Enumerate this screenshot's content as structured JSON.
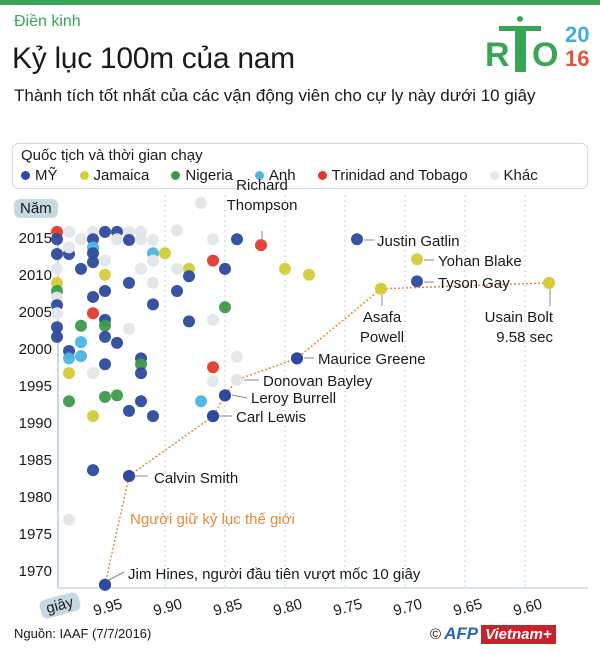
{
  "header": {
    "kicker": "Điền kinh",
    "title": "Kỷ lục 100m của nam",
    "subtitle": "Thành tích tốt nhất của các vận động viên cho cự ly này dưới 10 giây",
    "logo": {
      "text_left": "R",
      "text_right": "O",
      "year_top": "20",
      "year_bottom": "16"
    }
  },
  "legend": {
    "title": "Quốc tịch và thời gian chạy",
    "items": [
      {
        "key": "US",
        "label": "MỸ",
        "color": "#2e4a9e"
      },
      {
        "key": "JAM",
        "label": "Jamaica",
        "color": "#d4cc3a"
      },
      {
        "key": "NGR",
        "label": "Nigeria",
        "color": "#3c9a4a"
      },
      {
        "key": "GBR",
        "label": "Anh",
        "color": "#4bb5e0"
      },
      {
        "key": "TTO",
        "label": "Trinidad and Tobago",
        "color": "#e03a2e"
      },
      {
        "key": "OTH",
        "label": "Khác",
        "color": "#e4e7ea"
      }
    ]
  },
  "chart_data": {
    "type": "scatter",
    "ylabel": "Năm",
    "xlabel": "giây",
    "x_reversed": true,
    "xlim": [
      9.99,
      9.55
    ],
    "ylim": [
      1967,
      2020
    ],
    "x_ticks": [
      "9.95",
      "9.90",
      "9.85",
      "9.80",
      "9.75",
      "9.70",
      "9.65",
      "9.60"
    ],
    "y_ticks": [
      "1970",
      "1975",
      "1980",
      "1985",
      "1990",
      "1995",
      "2000",
      "2005",
      "2010",
      "2015"
    ],
    "grid": "vertical dotted",
    "points": [
      [
        9.99,
        2015.7,
        "TTO"
      ],
      [
        9.99,
        2014.7,
        "US"
      ],
      [
        9.98,
        2015.7,
        "OTH"
      ],
      [
        9.97,
        2014.7,
        "OTH"
      ],
      [
        9.96,
        2015.7,
        "OTH"
      ],
      [
        9.96,
        2014.7,
        "US"
      ],
      [
        9.95,
        2015.7,
        "US"
      ],
      [
        9.94,
        2015.7,
        "US"
      ],
      [
        9.94,
        2014.7,
        "OTH"
      ],
      [
        9.93,
        2015.7,
        "OTH"
      ],
      [
        9.93,
        2014.6,
        "US"
      ],
      [
        9.92,
        2015.7,
        "OTH"
      ],
      [
        9.92,
        2014.7,
        "OTH"
      ],
      [
        9.91,
        2014.6,
        "OTH"
      ],
      [
        9.89,
        2015.9,
        "OTH"
      ],
      [
        9.86,
        2014.7,
        "OTH"
      ],
      [
        9.84,
        2014.7,
        "US"
      ],
      [
        9.82,
        2013.9,
        "TTO"
      ],
      [
        9.87,
        2019.6,
        "OTH"
      ],
      [
        9.74,
        2014.7,
        "US"
      ],
      [
        9.69,
        2012.0,
        "JAM"
      ],
      [
        9.69,
        2009.0,
        "US"
      ],
      [
        9.58,
        2008.8,
        "JAM"
      ],
      [
        9.72,
        2008.0,
        "JAM"
      ],
      [
        9.79,
        1998.6,
        "US"
      ],
      [
        9.84,
        1995.7,
        "OTH"
      ],
      [
        9.85,
        1993.6,
        "US"
      ],
      [
        9.86,
        1990.8,
        "US"
      ],
      [
        9.93,
        1982.7,
        "US"
      ],
      [
        9.95,
        1968.0,
        "US"
      ],
      [
        9.96,
        1983.5,
        "US"
      ],
      [
        9.98,
        1976.8,
        "OTH"
      ],
      [
        9.86,
        2011.8,
        "TTO"
      ],
      [
        9.85,
        2010.7,
        "US"
      ],
      [
        9.8,
        2010.7,
        "JAM"
      ],
      [
        9.78,
        2009.9,
        "JAM"
      ],
      [
        9.85,
        2005.5,
        "NGR"
      ],
      [
        9.86,
        2003.8,
        "OTH"
      ],
      [
        9.84,
        1998.8,
        "OTH"
      ],
      [
        9.86,
        1997.4,
        "TTO"
      ],
      [
        9.86,
        1995.5,
        "OTH"
      ],
      [
        9.87,
        1992.8,
        "GBR"
      ],
      [
        9.99,
        2012.7,
        "US"
      ],
      [
        9.98,
        2012.7,
        "US"
      ],
      [
        9.98,
        2013.6,
        "OTH"
      ],
      [
        9.96,
        2013.6,
        "GBR"
      ],
      [
        9.96,
        2012.8,
        "US"
      ],
      [
        9.96,
        2011.6,
        "US"
      ],
      [
        9.95,
        2011.8,
        "OTH"
      ],
      [
        9.91,
        2012.8,
        "GBR"
      ],
      [
        9.91,
        2011.8,
        "OTH"
      ],
      [
        9.9,
        2012.8,
        "JAM"
      ],
      [
        9.99,
        2010.7,
        "OTH"
      ],
      [
        9.97,
        2010.7,
        "US"
      ],
      [
        9.95,
        2009.9,
        "JAM"
      ],
      [
        9.92,
        2010.7,
        "OTH"
      ],
      [
        9.89,
        2010.7,
        "OTH"
      ],
      [
        9.88,
        2010.7,
        "JAM"
      ],
      [
        9.88,
        2009.7,
        "US"
      ],
      [
        9.99,
        2008.8,
        "JAM"
      ],
      [
        9.93,
        2008.8,
        "US"
      ],
      [
        9.91,
        2008.8,
        "OTH"
      ],
      [
        9.99,
        2007.7,
        "NGR"
      ],
      [
        9.95,
        2007.7,
        "US"
      ],
      [
        9.89,
        2007.7,
        "US"
      ],
      [
        9.96,
        2006.9,
        "US"
      ],
      [
        9.99,
        2006.8,
        "OTH"
      ],
      [
        9.99,
        2005.8,
        "US"
      ],
      [
        9.91,
        2005.9,
        "US"
      ],
      [
        9.99,
        2004.7,
        "OTH"
      ],
      [
        9.96,
        2004.7,
        "TTO"
      ],
      [
        9.95,
        2003.8,
        "US"
      ],
      [
        9.88,
        2003.6,
        "US"
      ],
      [
        9.99,
        2002.8,
        "US"
      ],
      [
        9.97,
        2003.0,
        "NGR"
      ],
      [
        9.95,
        2003.0,
        "NGR"
      ],
      [
        9.93,
        2002.6,
        "OTH"
      ],
      [
        9.99,
        2001.5,
        "US"
      ],
      [
        9.95,
        2001.5,
        "US"
      ],
      [
        9.94,
        2000.7,
        "US"
      ],
      [
        9.97,
        2000.8,
        "GBR"
      ],
      [
        9.98,
        1999.6,
        "US"
      ],
      [
        9.98,
        1998.6,
        "GBR"
      ],
      [
        9.97,
        1998.9,
        "GBR"
      ],
      [
        9.95,
        1997.8,
        "US"
      ],
      [
        9.92,
        1998.6,
        "US"
      ],
      [
        9.92,
        1997.8,
        "NGR"
      ],
      [
        9.92,
        1996.6,
        "US"
      ],
      [
        9.98,
        1996.6,
        "JAM"
      ],
      [
        9.96,
        1996.6,
        "OTH"
      ],
      [
        9.98,
        1992.8,
        "NGR"
      ],
      [
        9.95,
        1993.4,
        "NGR"
      ],
      [
        9.94,
        1993.6,
        "NGR"
      ],
      [
        9.92,
        1992.8,
        "US"
      ],
      [
        9.93,
        1991.5,
        "US"
      ],
      [
        9.91,
        1990.8,
        "US"
      ],
      [
        9.96,
        1990.8,
        "JAM"
      ]
    ],
    "record_line": [
      [
        9.95,
        1968.0
      ],
      [
        9.93,
        1982.7
      ],
      [
        9.86,
        1990.8
      ],
      [
        9.85,
        1993.6
      ],
      [
        9.84,
        1995.7
      ],
      [
        9.79,
        1998.6
      ],
      [
        9.72,
        2008.0
      ],
      [
        9.58,
        2008.8
      ]
    ],
    "record_line_label": "Người giữ kỷ lục thế giới",
    "record_line_color": "#e8883a",
    "annotations": [
      {
        "lines": [
          "Richard",
          "Thompson"
        ]
      },
      {
        "lines": [
          "Justin Gatlin"
        ]
      },
      {
        "lines": [
          "Yohan Blake"
        ]
      },
      {
        "lines": [
          "Tyson Gay"
        ]
      },
      {
        "lines": [
          "Usain Bolt",
          "9.58 sec"
        ]
      },
      {
        "lines": [
          "Asafa",
          "Powell"
        ]
      },
      {
        "lines": [
          "Maurice Greene"
        ]
      },
      {
        "lines": [
          "Donovan Bayley"
        ]
      },
      {
        "lines": [
          "Leroy Burrell"
        ]
      },
      {
        "lines": [
          "Carl Lewis"
        ]
      },
      {
        "lines": [
          "Calvin Smith"
        ]
      },
      {
        "lines": [
          "Jim Hines, người đầu tiên vượt mốc 10 giây"
        ]
      }
    ]
  },
  "footer": {
    "source": "Nguồn: IAAF (7/7/2016)",
    "copyright": "©",
    "afp": "AFP",
    "brand": "Vietnam+"
  }
}
